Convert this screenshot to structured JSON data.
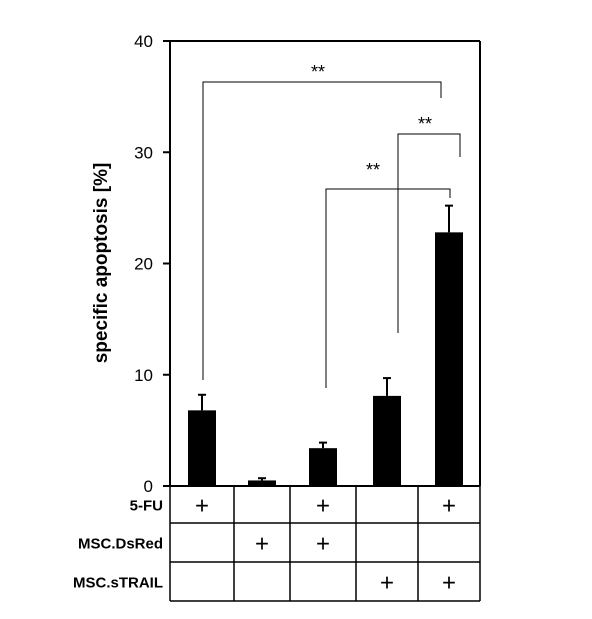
{
  "chart_data": {
    "type": "bar",
    "ylabel": "specific apoptosis [%]",
    "ylim": [
      0,
      40
    ],
    "yticks": [
      0,
      10,
      20,
      30,
      40
    ],
    "grid": false,
    "bar_color": "#000000",
    "values": [
      6.8,
      0.5,
      3.4,
      8.1,
      22.8
    ],
    "errors": [
      1.4,
      0.2,
      0.5,
      1.6,
      2.4
    ],
    "conditions": {
      "rows": [
        {
          "label": "5-FU",
          "marks": [
            "+",
            "",
            "+",
            "",
            "+"
          ]
        },
        {
          "label": "MSC.DsRed",
          "marks": [
            "",
            "+",
            "+",
            "",
            ""
          ]
        },
        {
          "label": "MSC.sTRAIL",
          "marks": [
            "",
            "",
            "",
            "+",
            "+"
          ]
        }
      ]
    },
    "significance": [
      {
        "from": 0,
        "to": 4,
        "label": "**"
      },
      {
        "from": 2,
        "to": 4,
        "label": "**"
      },
      {
        "from": 3,
        "to": 4,
        "label": "**"
      }
    ]
  }
}
